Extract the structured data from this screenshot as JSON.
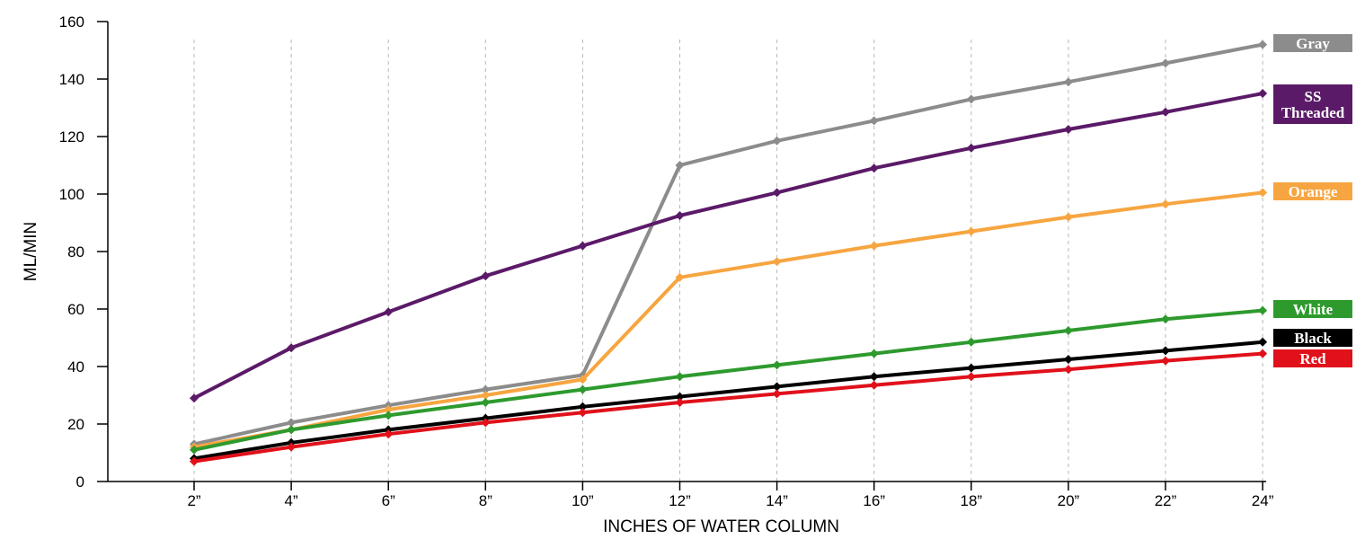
{
  "chart_data": {
    "type": "line",
    "title": "",
    "xlabel": "INCHES OF WATER COLUMN",
    "ylabel": "ML/MIN",
    "categories": [
      "2”",
      "4”",
      "6”",
      "8”",
      "10”",
      "12”",
      "14”",
      "16”",
      "18”",
      "20”",
      "22”",
      "24”"
    ],
    "ylim": [
      0,
      160
    ],
    "yticks": [
      0,
      20,
      40,
      60,
      80,
      100,
      120,
      140,
      160
    ],
    "grid": "vertical dashed",
    "legend": "right, labels at line ends",
    "series": [
      {
        "name": "Gray",
        "color": "#8c8c8c",
        "label_lines": [
          "Gray"
        ],
        "values": [
          13,
          20.5,
          26.5,
          32,
          37,
          110,
          118.5,
          125.5,
          133,
          139,
          145.5,
          152
        ]
      },
      {
        "name": "SS Threaded",
        "color": "#5b1a68",
        "label_lines": [
          "SS",
          "Threaded"
        ],
        "values": [
          29,
          46.5,
          59,
          71.5,
          82,
          92.5,
          100.5,
          109,
          116,
          122.5,
          128.5,
          135
        ]
      },
      {
        "name": "Orange",
        "color": "#f7a540",
        "label_lines": [
          "Orange"
        ],
        "values": [
          12,
          18,
          25,
          30,
          35.5,
          71,
          76.5,
          82,
          87,
          92,
          96.5,
          100.5
        ]
      },
      {
        "name": "White",
        "color": "#2e9a2e",
        "label_lines": [
          "White"
        ],
        "values": [
          11,
          18,
          23,
          27.5,
          32,
          36.5,
          40.5,
          44.5,
          48.5,
          52.5,
          56.5,
          59.5
        ]
      },
      {
        "name": "Black",
        "color": "#000000",
        "label_lines": [
          "Black"
        ],
        "values": [
          8,
          13.5,
          18,
          22,
          26,
          29.5,
          33,
          36.5,
          39.5,
          42.5,
          45.5,
          48.5
        ]
      },
      {
        "name": "Red",
        "color": "#e0111b",
        "label_lines": [
          "Red"
        ],
        "values": [
          7,
          12,
          16.5,
          20.5,
          24,
          27.5,
          30.5,
          33.5,
          36.5,
          39,
          42,
          44.5
        ]
      }
    ]
  }
}
